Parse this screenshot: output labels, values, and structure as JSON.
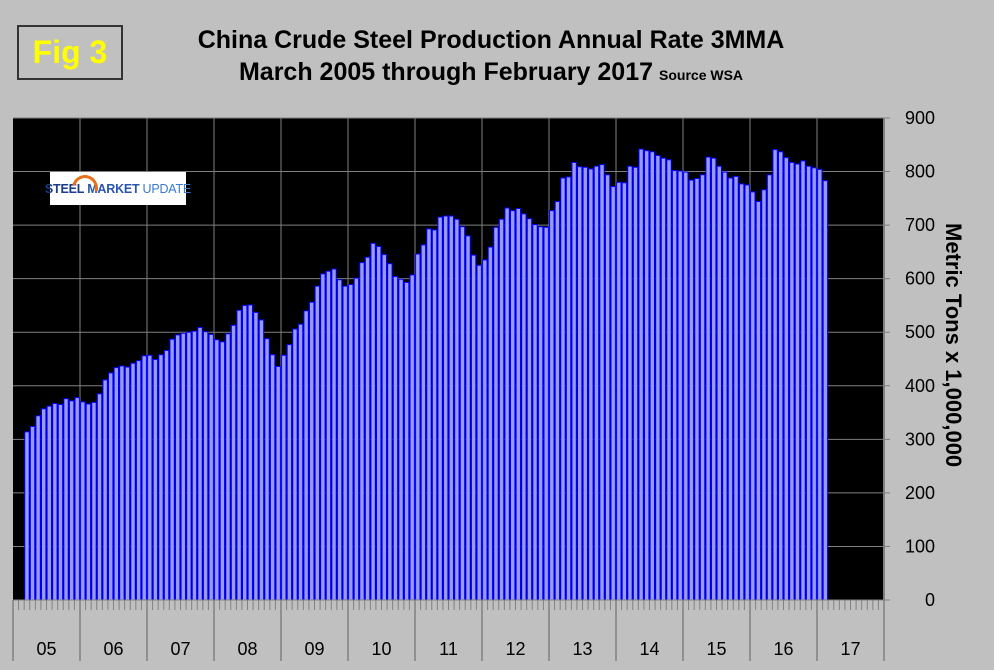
{
  "figure_label": "Fig 3",
  "logo_text": [
    "STEEL",
    "MARKET",
    "UPDATE"
  ],
  "colors": {
    "background": "#c0c0c0",
    "plot_background": "#000000",
    "bar_fill": "#9999ff",
    "bar_edge": "#0000ff",
    "grid": "#808080",
    "fig_label": "#ffff00"
  },
  "chart_data": {
    "type": "bar",
    "title": "China Crude Steel Production Annual Rate 3MMA",
    "subtitle": "March 2005 through February 2017",
    "source": "Source WSA",
    "ylabel": "Metric Tons x 1,000,000",
    "xlabel": "",
    "ylim": [
      0,
      900
    ],
    "yticks": [
      0,
      100,
      200,
      300,
      400,
      500,
      600,
      700,
      800,
      900
    ],
    "yaxis_side": "right",
    "xtick_labels": [
      "05",
      "06",
      "07",
      "08",
      "09",
      "10",
      "11",
      "12",
      "13",
      "14",
      "15",
      "16",
      "17"
    ],
    "x_start": "2005-03",
    "x_end": "2017-02",
    "frequency": "monthly",
    "grid": true,
    "values": [
      314,
      324,
      344,
      357,
      362,
      367,
      365,
      376,
      372,
      378,
      370,
      366,
      369,
      385,
      411,
      424,
      434,
      437,
      435,
      442,
      447,
      456,
      457,
      449,
      458,
      466,
      487,
      495,
      498,
      500,
      502,
      509,
      501,
      496,
      486,
      482,
      497,
      513,
      541,
      550,
      551,
      537,
      523,
      488,
      458,
      436,
      457,
      477,
      506,
      515,
      540,
      556,
      586,
      609,
      614,
      618,
      598,
      586,
      589,
      601,
      630,
      640,
      666,
      660,
      645,
      628,
      604,
      599,
      593,
      607,
      646,
      663,
      693,
      691,
      715,
      717,
      717,
      711,
      697,
      680,
      644,
      625,
      635,
      659,
      696,
      711,
      732,
      727,
      731,
      721,
      712,
      701,
      697,
      696,
      727,
      744,
      788,
      790,
      817,
      809,
      808,
      805,
      810,
      813,
      794,
      772,
      780,
      779,
      810,
      808,
      842,
      839,
      837,
      830,
      825,
      822,
      802,
      801,
      799,
      784,
      787,
      794,
      827,
      825,
      810,
      799,
      788,
      791,
      777,
      775,
      762,
      744,
      766,
      794,
      841,
      837,
      826,
      817,
      814,
      820,
      810,
      807,
      804,
      783
    ]
  }
}
